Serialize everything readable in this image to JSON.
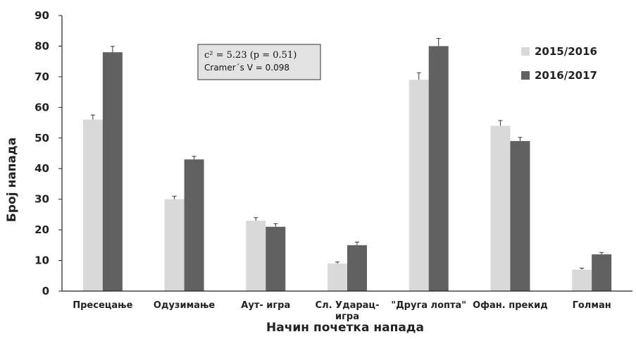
{
  "chart_data": {
    "type": "bar",
    "xlabel": "Начин почетка напада",
    "ylabel": "Број напада",
    "ylim": [
      0,
      90
    ],
    "yticks": [
      0,
      10,
      20,
      30,
      40,
      50,
      60,
      70,
      80,
      90
    ],
    "categories": [
      [
        "Пресецање"
      ],
      [
        "Одузимање"
      ],
      [
        "Аут- игра"
      ],
      [
        "Сл. Ударац-",
        "игра"
      ],
      [
        "\"Друга лопта\""
      ],
      [
        "Офан. прекид"
      ],
      [
        "Голман"
      ]
    ],
    "series": [
      {
        "name": "2015/2016",
        "color": "#d9d9d9",
        "values": [
          56,
          30,
          23,
          9,
          69,
          54,
          7
        ],
        "errors": [
          1.5,
          1.0,
          1.0,
          0.5,
          2.3,
          1.7,
          0.5
        ]
      },
      {
        "name": "2016/2017",
        "color": "#616161",
        "values": [
          78,
          43,
          21,
          15,
          80,
          49,
          12
        ],
        "errors": [
          1.9,
          1.0,
          1.0,
          1.0,
          2.5,
          1.2,
          0.6
        ]
      }
    ],
    "annotation": {
      "line1": "c² = 5.23 (p = 0.51)",
      "line2": "Cramer´s V = 0.098"
    },
    "legend_position": "top-right",
    "grid": false
  }
}
